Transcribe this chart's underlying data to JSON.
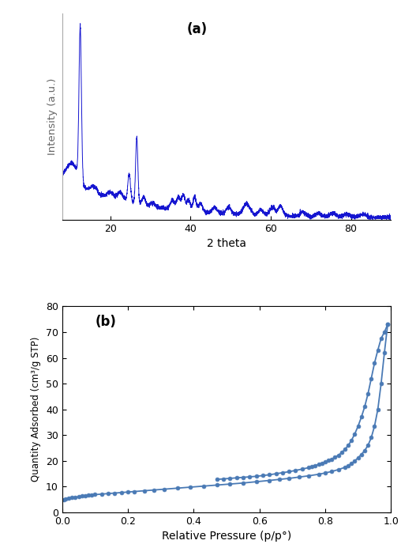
{
  "xrd_color": "#1515d0",
  "xrd_xlabel": "2 theta",
  "xrd_ylabel": "Intensity (a.u.)",
  "xrd_label": "(a)",
  "xrd_xlim": [
    8,
    90
  ],
  "ads_color": "#4a7ab5",
  "ads_xlabel": "Relative Pressure (p/p°)",
  "ads_ylabel": "Quantity Adsorbed (cm³/g STP)",
  "ads_label": "(b)",
  "ads_ylim": [
    0,
    80
  ],
  "ads_xlim": [
    0,
    1.0
  ],
  "adsorption_x": [
    0.005,
    0.01,
    0.02,
    0.03,
    0.04,
    0.05,
    0.06,
    0.07,
    0.08,
    0.09,
    0.1,
    0.12,
    0.14,
    0.16,
    0.18,
    0.2,
    0.22,
    0.25,
    0.28,
    0.31,
    0.35,
    0.39,
    0.43,
    0.47,
    0.51,
    0.55,
    0.59,
    0.63,
    0.66,
    0.69,
    0.72,
    0.75,
    0.78,
    0.8,
    0.82,
    0.84,
    0.86,
    0.87,
    0.88,
    0.89,
    0.9,
    0.91,
    0.92,
    0.93,
    0.94,
    0.95,
    0.96,
    0.97,
    0.98,
    0.99
  ],
  "adsorption_y": [
    5.0,
    5.2,
    5.5,
    5.7,
    5.9,
    6.1,
    6.3,
    6.5,
    6.6,
    6.7,
    6.9,
    7.1,
    7.3,
    7.5,
    7.7,
    7.9,
    8.1,
    8.4,
    8.7,
    9.0,
    9.4,
    9.8,
    10.2,
    10.6,
    11.0,
    11.4,
    11.9,
    12.4,
    12.8,
    13.2,
    13.7,
    14.2,
    14.8,
    15.3,
    15.9,
    16.6,
    17.5,
    18.2,
    19.0,
    20.0,
    21.2,
    22.5,
    24.0,
    26.0,
    29.0,
    33.5,
    40.0,
    50.0,
    62.0,
    73.0
  ],
  "desorption_x": [
    0.99,
    0.98,
    0.97,
    0.96,
    0.95,
    0.94,
    0.93,
    0.92,
    0.91,
    0.9,
    0.89,
    0.88,
    0.87,
    0.86,
    0.85,
    0.84,
    0.83,
    0.82,
    0.81,
    0.8,
    0.79,
    0.78,
    0.77,
    0.76,
    0.75,
    0.73,
    0.71,
    0.69,
    0.67,
    0.65,
    0.63,
    0.61,
    0.59,
    0.57,
    0.55,
    0.53,
    0.51,
    0.49,
    0.47
  ],
  "desorption_y": [
    73.0,
    70.0,
    67.5,
    63.0,
    58.0,
    52.0,
    46.0,
    41.0,
    37.0,
    33.5,
    30.5,
    28.0,
    26.0,
    24.5,
    23.2,
    22.2,
    21.4,
    20.7,
    20.1,
    19.6,
    19.1,
    18.6,
    18.2,
    17.8,
    17.4,
    16.8,
    16.3,
    15.8,
    15.4,
    15.0,
    14.6,
    14.3,
    14.0,
    13.8,
    13.6,
    13.4,
    13.2,
    13.0,
    12.8
  ],
  "xrd_noise_seed": 42,
  "xrd_noise_amp": 1.5,
  "xrd_bg_amp": 55,
  "xrd_bg_decay": 0.055
}
